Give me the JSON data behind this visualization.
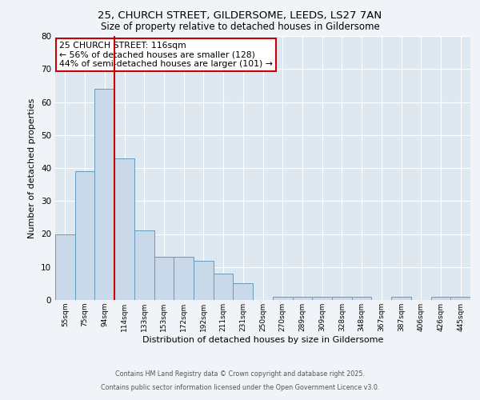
{
  "title1": "25, CHURCH STREET, GILDERSOME, LEEDS, LS27 7AN",
  "title2": "Size of property relative to detached houses in Gildersome",
  "xlabel": "Distribution of detached houses by size in Gildersome",
  "ylabel": "Number of detached properties",
  "categories": [
    "55sqm",
    "75sqm",
    "94sqm",
    "114sqm",
    "133sqm",
    "153sqm",
    "172sqm",
    "192sqm",
    "211sqm",
    "231sqm",
    "250sqm",
    "270sqm",
    "289sqm",
    "309sqm",
    "328sqm",
    "348sqm",
    "367sqm",
    "387sqm",
    "406sqm",
    "426sqm",
    "445sqm"
  ],
  "values": [
    20,
    39,
    64,
    43,
    21,
    13,
    13,
    12,
    8,
    5,
    0,
    1,
    1,
    1,
    1,
    1,
    0,
    1,
    0,
    1,
    1
  ],
  "bar_color": "#c9d9ea",
  "bar_edge_color": "#6699bb",
  "vline_color": "#cc0000",
  "annotation_text": "25 CHURCH STREET: 116sqm\n← 56% of detached houses are smaller (128)\n44% of semi-detached houses are larger (101) →",
  "ylim": [
    0,
    80
  ],
  "yticks": [
    0,
    10,
    20,
    30,
    40,
    50,
    60,
    70,
    80
  ],
  "fig_bg": "#f0f4f8",
  "plot_bg": "#dde8f0",
  "footer1": "Contains HM Land Registry data © Crown copyright and database right 2025.",
  "footer2": "Contains public sector information licensed under the Open Government Licence v3.0."
}
